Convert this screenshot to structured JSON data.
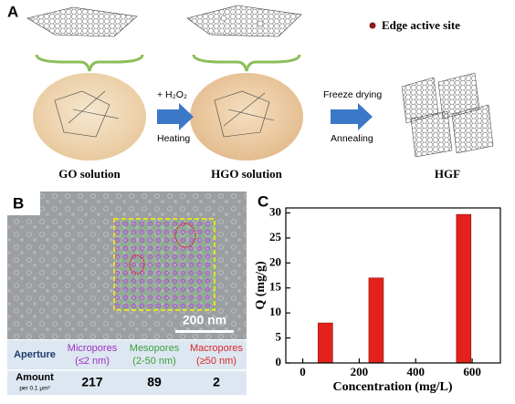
{
  "panel_a": {
    "label": "A",
    "legend": "Edge active site",
    "step1": [
      "+ H₂O₂",
      "Heating"
    ],
    "step2": [
      "Freeze drying",
      "Annealing"
    ],
    "captions": [
      "GO  solution",
      "HGO  solution",
      "HGF"
    ]
  },
  "panel_b": {
    "label": "B",
    "scale_bar": "200 nm",
    "table": {
      "header": [
        {
          "name": "Aperture"
        },
        {
          "name": "Micropores",
          "range": "(≤2 nm)"
        },
        {
          "name": "Mesopores",
          "range": "(2-50 nm)"
        },
        {
          "name": "Macropores",
          "range": "(≥50 nm)"
        }
      ],
      "row_label": "Amount",
      "row_unit": "per 0.1 μm²",
      "values": [
        217,
        89,
        2
      ]
    }
  },
  "chart_data": {
    "type": "bar",
    "panel_label": "C",
    "xlabel": "Concentration (mg/L)",
    "ylabel": "Q (mg/g)",
    "x": [
      80,
      260,
      570
    ],
    "values": [
      8,
      17,
      29.7
    ],
    "color": "#e3221c",
    "xlim": [
      -60,
      700
    ],
    "ylim": [
      0,
      31
    ],
    "xticks": [
      0,
      200,
      400,
      600
    ],
    "yticks": [
      0,
      5,
      10,
      15,
      20,
      25,
      30
    ]
  }
}
